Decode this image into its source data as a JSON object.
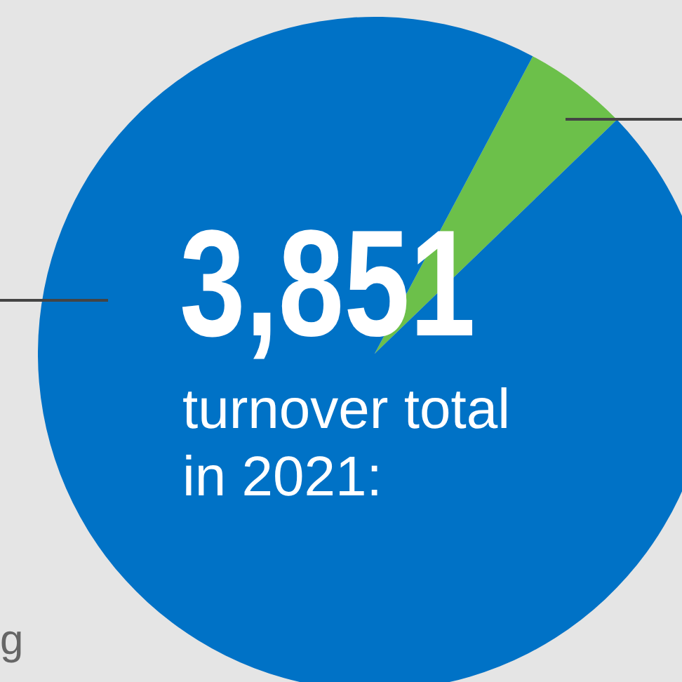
{
  "chart_data": {
    "type": "pie",
    "categories": [
      null,
      null
    ],
    "values": [
      5,
      95
    ],
    "colors": [
      "#6cc04a",
      "#0072c6"
    ],
    "legend": false,
    "annotations": [
      "3,851",
      "turnover total in 2021:",
      "g"
    ]
  }
}
